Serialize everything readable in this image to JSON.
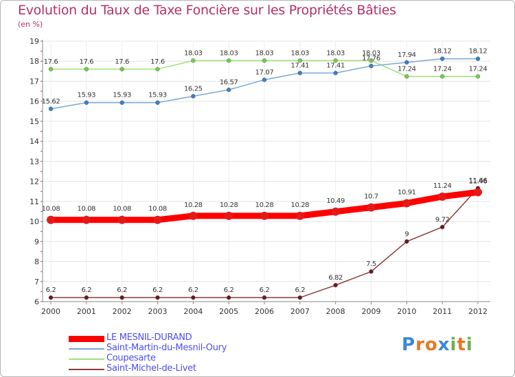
{
  "title": "Evolution du Taux de Taxe Foncière sur les Propriétés Bâties",
  "unit_label": "(en %)",
  "logo": {
    "text": "Proxiti",
    "letters": [
      {
        "ch": "P",
        "color": "#3a88d8"
      },
      {
        "ch": "r",
        "color": "#e87722"
      },
      {
        "ch": "o",
        "color": "#e87722"
      },
      {
        "ch": "x",
        "color": "#3a88d8"
      },
      {
        "ch": "i",
        "color": "#6ab04c"
      },
      {
        "ch": "t",
        "color": "#e87722"
      },
      {
        "ch": "i",
        "color": "#6ab04c"
      }
    ]
  },
  "chart_data": {
    "type": "line",
    "title": "Evolution du Taux de Taxe Foncière sur les Propriétés Bâties",
    "ylabel": "(en %)",
    "xlabel": "",
    "ylim": [
      6,
      19
    ],
    "y_ticks": [
      "6",
      "7",
      "8",
      "9",
      "10",
      "11",
      "12",
      "13",
      "14",
      "15",
      "16",
      "17",
      "18",
      "19"
    ],
    "x": [
      "2000",
      "2001",
      "2002",
      "2003",
      "2004",
      "2005",
      "2006",
      "2007",
      "2008",
      "2009",
      "2010",
      "2011",
      "2012"
    ],
    "grid": true,
    "legend_position": "bottom-left",
    "series": [
      {
        "name": "LE MESNIL-DURAND",
        "color": "#ff0000",
        "marker_color": "#e31a1a",
        "values": [
          10.08,
          10.08,
          10.08,
          10.08,
          10.28,
          10.28,
          10.28,
          10.28,
          10.49,
          10.7,
          10.91,
          11.24,
          11.46
        ],
        "labels": [
          "10.08",
          "10.08",
          "10.08",
          "10.08",
          "10.28",
          "10.28",
          "10.28",
          "10.28",
          "10.49",
          "10.7",
          "10.91",
          "11.24",
          "11.46"
        ]
      },
      {
        "name": "Saint-Martin-du-Mesnil-Oury",
        "color": "#7ba7d6",
        "marker_color": "#3b7fc4",
        "values": [
          15.62,
          15.93,
          15.93,
          15.93,
          16.25,
          16.57,
          17.07,
          17.41,
          17.41,
          17.76,
          17.94,
          18.12,
          18.12
        ],
        "labels": [
          "15.62",
          "15.93",
          "15.93",
          "15.93",
          "16.25",
          "16.57",
          "17.07",
          "17.41",
          "17.41",
          "17.76",
          "17.94",
          "18.12",
          "18.12"
        ]
      },
      {
        "name": "Coupesarte",
        "color": "#9ee07a",
        "marker_color": "#6fcf46",
        "values": [
          17.6,
          17.6,
          17.6,
          17.6,
          18.03,
          18.03,
          18.03,
          18.03,
          18.03,
          18.03,
          17.24,
          17.24,
          17.24
        ],
        "labels": [
          "17.6",
          "17.6",
          "17.6",
          "17.6",
          "18.03",
          "18.03",
          "18.03",
          "18.03",
          "18.03",
          "18.03",
          "17.24",
          "17.24",
          "17.24"
        ]
      },
      {
        "name": "Saint-Michel-de-Livet",
        "color": "#8b3a3a",
        "marker_color": "#6b1a1a",
        "values": [
          6.2,
          6.2,
          6.2,
          6.2,
          6.2,
          6.2,
          6.2,
          6.2,
          6.82,
          7.5,
          9.0,
          9.72,
          11.66
        ],
        "labels": [
          "6.2",
          "6.2",
          "6.2",
          "6.2",
          "6.2",
          "6.2",
          "6.2",
          "6.2",
          "6.82",
          "7.5",
          "9",
          "9.72",
          "11.66"
        ]
      }
    ]
  }
}
